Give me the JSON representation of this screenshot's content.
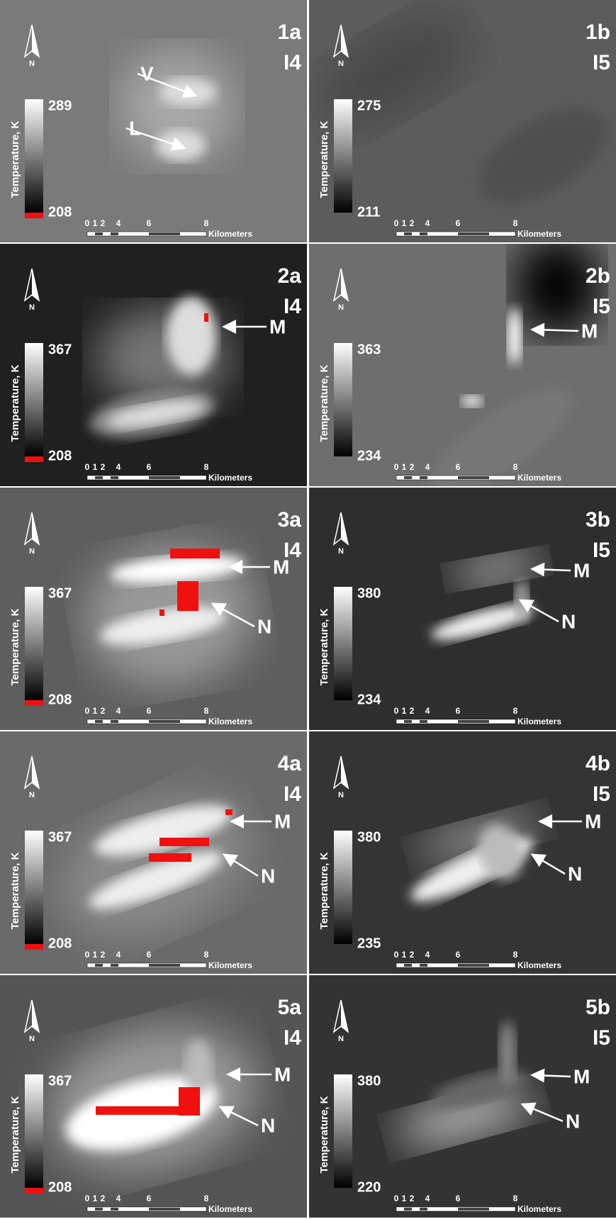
{
  "north_label": "N",
  "colorbar_title": "Temperature, K",
  "scale_bar": {
    "ticks": [
      "0",
      "1",
      "2",
      "4",
      "6",
      "8"
    ],
    "unit": "Kilometers"
  },
  "panels": [
    {
      "id": "1a",
      "band": "I4",
      "max": 289,
      "min": 208,
      "annotations": [
        {
          "label": "V"
        },
        {
          "label": "L"
        }
      ]
    },
    {
      "id": "1b",
      "band": "I5",
      "max": 275,
      "min": 211,
      "annotations": []
    },
    {
      "id": "2a",
      "band": "I4",
      "max": 367,
      "min": 208,
      "annotations": [
        {
          "label": "M"
        }
      ]
    },
    {
      "id": "2b",
      "band": "I5",
      "max": 363,
      "min": 234,
      "annotations": [
        {
          "label": "M"
        }
      ]
    },
    {
      "id": "3a",
      "band": "I4",
      "max": 367,
      "min": 208,
      "annotations": [
        {
          "label": "M"
        },
        {
          "label": "N"
        }
      ]
    },
    {
      "id": "3b",
      "band": "I5",
      "max": 380,
      "min": 234,
      "annotations": [
        {
          "label": "M"
        },
        {
          "label": "N"
        }
      ]
    },
    {
      "id": "4a",
      "band": "I4",
      "max": 367,
      "min": 208,
      "annotations": [
        {
          "label": "M"
        },
        {
          "label": "N"
        }
      ]
    },
    {
      "id": "4b",
      "band": "I5",
      "max": 380,
      "min": 235,
      "annotations": [
        {
          "label": "M"
        },
        {
          "label": "N"
        }
      ]
    },
    {
      "id": "5a",
      "band": "I4",
      "max": 367,
      "min": 208,
      "annotations": [
        {
          "label": "M"
        },
        {
          "label": "N"
        }
      ]
    },
    {
      "id": "5b",
      "band": "I5",
      "max": 380,
      "min": 220,
      "annotations": [
        {
          "label": "M"
        },
        {
          "label": "N"
        }
      ]
    }
  ]
}
